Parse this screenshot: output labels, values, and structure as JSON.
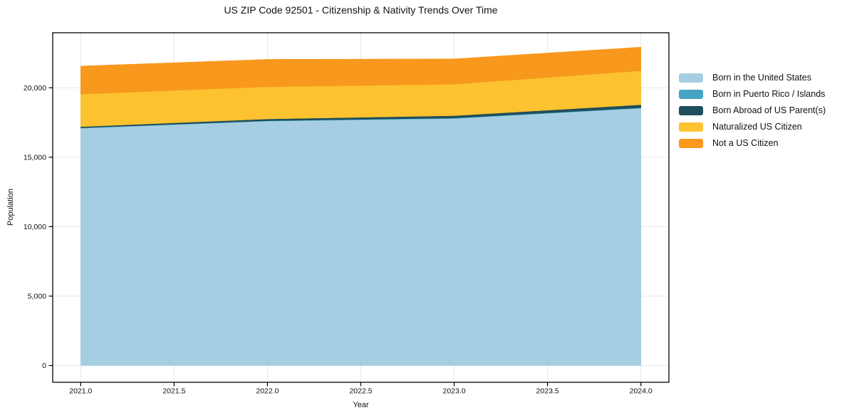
{
  "chart_data": {
    "type": "area",
    "stacked": true,
    "title": "US ZIP Code 92501 - Citizenship & Nativity Trends Over Time",
    "xlabel": "Year",
    "ylabel": "Population",
    "x": [
      2021,
      2022,
      2023,
      2024
    ],
    "series": [
      {
        "name": "Born in the United States",
        "color": "#A6CEE3",
        "values": [
          17090,
          17600,
          17785,
          18525
        ]
      },
      {
        "name": "Born in Puerto Rico / Islands",
        "color": "#44A4C1",
        "values": [
          25,
          30,
          35,
          40
        ]
      },
      {
        "name": "Born Abroad of US Parent(s)",
        "color": "#1F4E5C",
        "values": [
          80,
          125,
          170,
          215
        ]
      },
      {
        "name": "Naturalized US Citizen",
        "color": "#FDC22F",
        "values": [
          2350,
          2320,
          2265,
          2445
        ]
      },
      {
        "name": "Not a US Citizen",
        "color": "#F8981D",
        "values": [
          2020,
          1970,
          1825,
          1705
        ]
      }
    ],
    "stacked_totals": [
      21565,
      22045,
      22080,
      22930
    ],
    "xlim": [
      2020.85,
      2024.15
    ],
    "ylim": [
      -1204,
      23963
    ],
    "xticks": [
      {
        "value": 2021.0,
        "label": "2021.0"
      },
      {
        "value": 2021.5,
        "label": "2021.5"
      },
      {
        "value": 2022.0,
        "label": "2022.0"
      },
      {
        "value": 2022.5,
        "label": "2022.5"
      },
      {
        "value": 2023.0,
        "label": "2023.0"
      },
      {
        "value": 2023.5,
        "label": "2023.5"
      },
      {
        "value": 2024.0,
        "label": "2024.0"
      }
    ],
    "yticks": [
      {
        "value": 0,
        "label": "0"
      },
      {
        "value": 5000,
        "label": "5,000"
      },
      {
        "value": 10000,
        "label": "10,000"
      },
      {
        "value": 15000,
        "label": "15,000"
      },
      {
        "value": 20000,
        "label": "20,000"
      }
    ],
    "grid": true,
    "grid_color": "#e7e7e7",
    "spine_color": "#000000",
    "background_color": "#ffffff",
    "legend_position": "right"
  }
}
